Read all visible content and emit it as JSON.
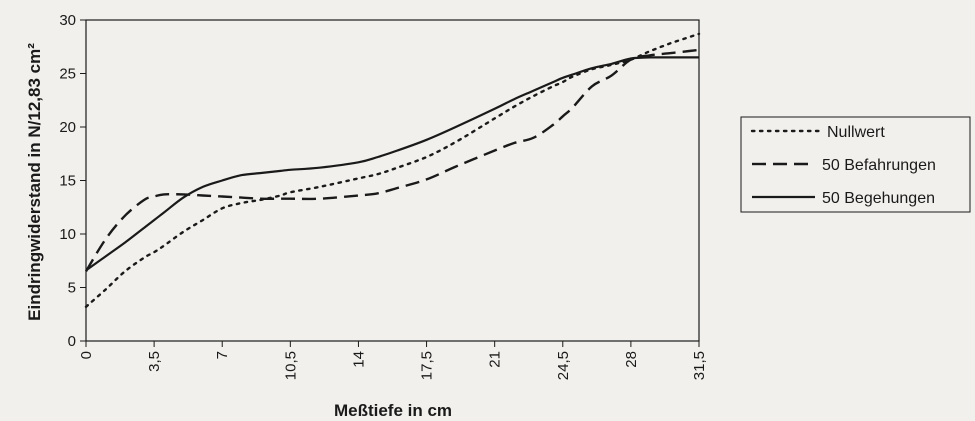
{
  "chart_data": {
    "type": "line",
    "xlabel": "Meßtiefe in cm",
    "ylabel": "Eindringwiderstand in N/12,83 cm²",
    "x_tick_labels": [
      "0",
      "3,5",
      "7",
      "10,5",
      "14",
      "17,5",
      "21",
      "24,5",
      "28",
      "31,5"
    ],
    "y_tick_labels": [
      "0",
      "5",
      "10",
      "15",
      "20",
      "25",
      "30"
    ],
    "xlim": [
      0,
      31.5
    ],
    "ylim": [
      0,
      30
    ],
    "grid": false,
    "legend_position": "right",
    "x": [
      0,
      1,
      2,
      3,
      3.5,
      4,
      5,
      6,
      7,
      8,
      9,
      10,
      10.5,
      12,
      14,
      15,
      16,
      17.5,
      19,
      21,
      22,
      23,
      24,
      24.5,
      25,
      26,
      27,
      28,
      29,
      30,
      31,
      31.5
    ],
    "series": [
      {
        "name": "Nullwert",
        "dash": "dotted",
        "values": [
          3.2,
          4.8,
          6.5,
          7.8,
          8.3,
          8.9,
          10.2,
          11.3,
          12.4,
          12.9,
          13.2,
          13.6,
          13.9,
          14.4,
          15.2,
          15.6,
          16.2,
          17.2,
          18.6,
          20.8,
          21.9,
          22.9,
          23.8,
          24.2,
          24.7,
          25.4,
          25.8,
          26.3,
          27.1,
          27.8,
          28.4,
          28.7
        ]
      },
      {
        "name": "50 Befahrungen",
        "dash": "dashed",
        "values": [
          6.5,
          9.5,
          11.7,
          13.2,
          13.5,
          13.7,
          13.7,
          13.6,
          13.5,
          13.4,
          13.3,
          13.3,
          13.3,
          13.3,
          13.6,
          13.8,
          14.3,
          15.1,
          16.3,
          17.8,
          18.5,
          19.0,
          20.2,
          21.0,
          21.8,
          23.8,
          24.8,
          26.3,
          26.7,
          26.9,
          27.1,
          27.2
        ]
      },
      {
        "name": "50 Begehungen",
        "dash": "solid",
        "values": [
          6.6,
          7.9,
          9.2,
          10.6,
          11.3,
          12.0,
          13.4,
          14.4,
          15.0,
          15.5,
          15.7,
          15.9,
          16.0,
          16.2,
          16.7,
          17.2,
          17.8,
          18.8,
          20.0,
          21.7,
          22.6,
          23.4,
          24.2,
          24.6,
          24.9,
          25.5,
          25.9,
          26.4,
          26.5,
          26.5,
          26.5,
          26.5
        ]
      }
    ]
  },
  "colors": {
    "ink": "#1a1a1a",
    "background": "#f1f0ec"
  }
}
